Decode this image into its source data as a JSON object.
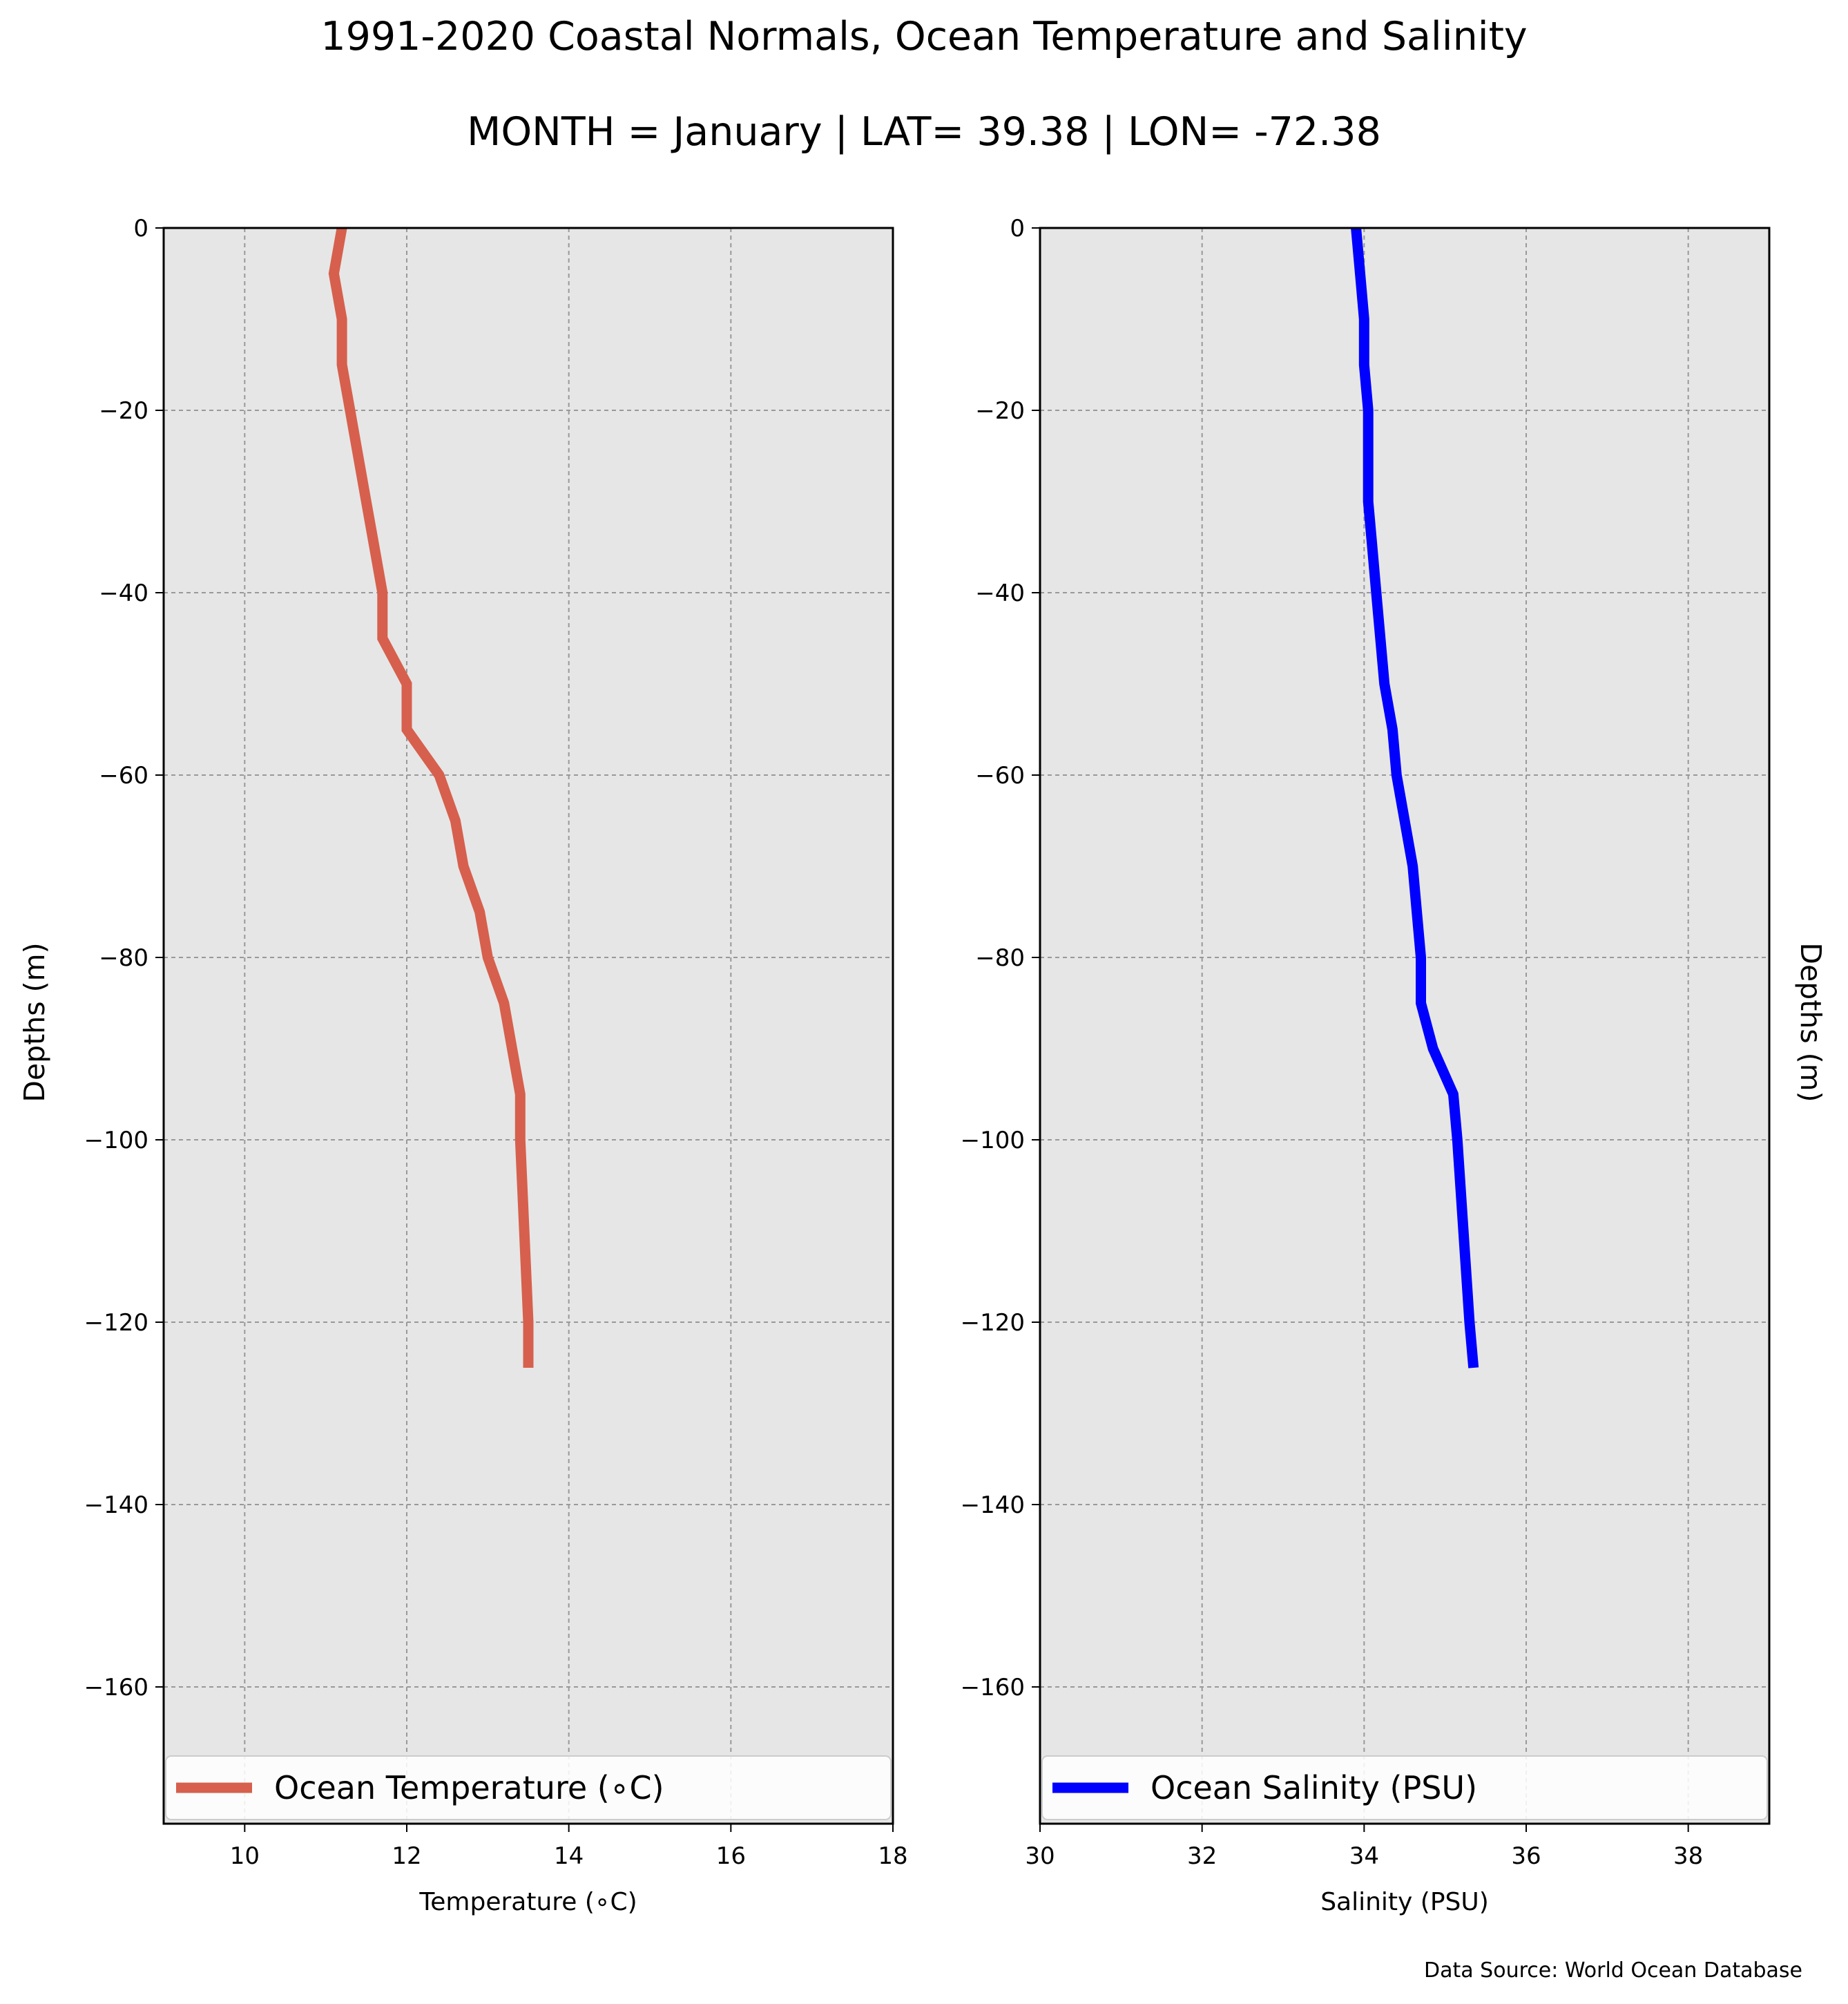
{
  "title": "1991-2020 Coastal Normals, Ocean Temperature and Salinity",
  "subtitle": "MONTH = January | LAT= 39.38 | LON= -72.38",
  "source_note": "Data Source: World Ocean Database",
  "colors": {
    "temperature": "#d6604d",
    "salinity": "#0000ff",
    "plot_bg": "#e6e6e6",
    "grid": "#999999"
  },
  "chart_data": [
    {
      "type": "line",
      "xlabel": "Temperature (∘C)",
      "ylabel": "Depths (m)",
      "xlim": [
        9,
        18
      ],
      "ylim": [
        -175,
        0
      ],
      "xticks": [
        10,
        12,
        14,
        16,
        18
      ],
      "yticks": [
        0,
        -20,
        -40,
        -60,
        -80,
        -100,
        -120,
        -140,
        -160
      ],
      "ytick_labels": [
        "0",
        "−20",
        "−40",
        "−60",
        "−80",
        "−100",
        "−120",
        "−140",
        "−160"
      ],
      "grid": true,
      "legend_position": "bottom",
      "series": [
        {
          "name": "Ocean Temperature (∘C)",
          "x": [
            11.2,
            11.1,
            11.2,
            11.2,
            11.3,
            11.4,
            11.5,
            11.6,
            11.7,
            11.7,
            12.0,
            12.0,
            12.4,
            12.6,
            12.7,
            12.9,
            13.0,
            13.2,
            13.3,
            13.4,
            13.4,
            13.5,
            13.5
          ],
          "y": [
            0,
            -5,
            -10,
            -15,
            -20,
            -25,
            -30,
            -35,
            -40,
            -45,
            -50,
            -55,
            -60,
            -65,
            -70,
            -75,
            -80,
            -85,
            -90,
            -95,
            -100,
            -120,
            -125
          ]
        }
      ]
    },
    {
      "type": "line",
      "xlabel": "Salinity (PSU)",
      "ylabel": "Depths (m)",
      "xlim": [
        30,
        39
      ],
      "ylim": [
        -175,
        0
      ],
      "xticks": [
        30,
        32,
        34,
        36,
        38
      ],
      "yticks": [
        0,
        -20,
        -40,
        -60,
        -80,
        -100,
        -120,
        -140,
        -160
      ],
      "ytick_labels": [
        "0",
        "−20",
        "−40",
        "−60",
        "−80",
        "−100",
        "−120",
        "−140",
        "−160"
      ],
      "grid": true,
      "legend_position": "bottom",
      "series": [
        {
          "name": "Ocean Salinity (PSU)",
          "x": [
            33.9,
            33.95,
            34.0,
            34.0,
            34.05,
            34.05,
            34.05,
            34.1,
            34.15,
            34.2,
            34.25,
            34.35,
            34.4,
            34.5,
            34.6,
            34.65,
            34.7,
            34.7,
            34.85,
            35.1,
            35.15,
            35.3,
            35.35
          ],
          "y": [
            0,
            -5,
            -10,
            -15,
            -20,
            -25,
            -30,
            -35,
            -40,
            -45,
            -50,
            -55,
            -60,
            -65,
            -70,
            -75,
            -80,
            -85,
            -90,
            -95,
            -100,
            -120,
            -125
          ]
        }
      ]
    }
  ]
}
